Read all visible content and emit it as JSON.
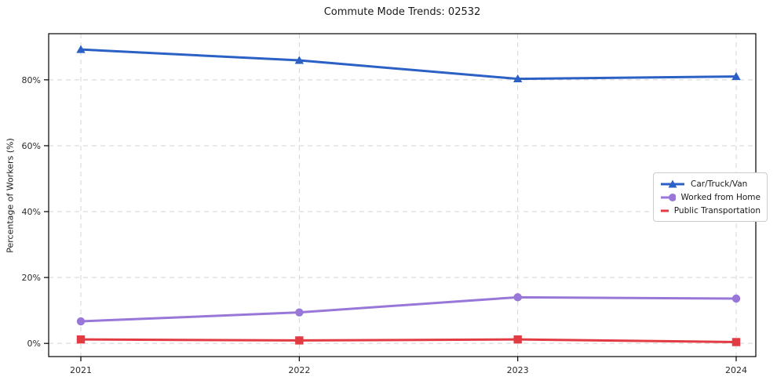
{
  "chart_data": {
    "type": "line",
    "title": "Commute Mode Trends: 02532",
    "xlabel": "",
    "ylabel": "Percentage of Workers (%)",
    "categories": [
      "2021",
      "2022",
      "2023",
      "2024"
    ],
    "series": [
      {
        "name": "Car/Truck/Van",
        "marker": "triangle",
        "color": "#2b60c5",
        "values": [
          89.2,
          85.9,
          80.3,
          81.0
        ]
      },
      {
        "name": "Worked from Home",
        "marker": "circle",
        "color": "#9877d9",
        "values": [
          6.7,
          9.4,
          14.0,
          13.6
        ]
      },
      {
        "name": "Public Transportation",
        "marker": "square",
        "color": "#e23b43",
        "values": [
          1.2,
          0.9,
          1.2,
          0.4
        ]
      }
    ],
    "yticks": [
      0,
      20,
      40,
      60,
      80
    ],
    "ytick_labels": [
      "0%",
      "20%",
      "40%",
      "60%",
      "80%"
    ],
    "ylim": [
      -4,
      94
    ],
    "grid": "dashed",
    "legend_position": "center-right",
    "colors": {
      "grid": "#d4d4d4",
      "axis": "#000000",
      "tick_text": "#2b2b2b",
      "background": "#ffffff"
    }
  }
}
